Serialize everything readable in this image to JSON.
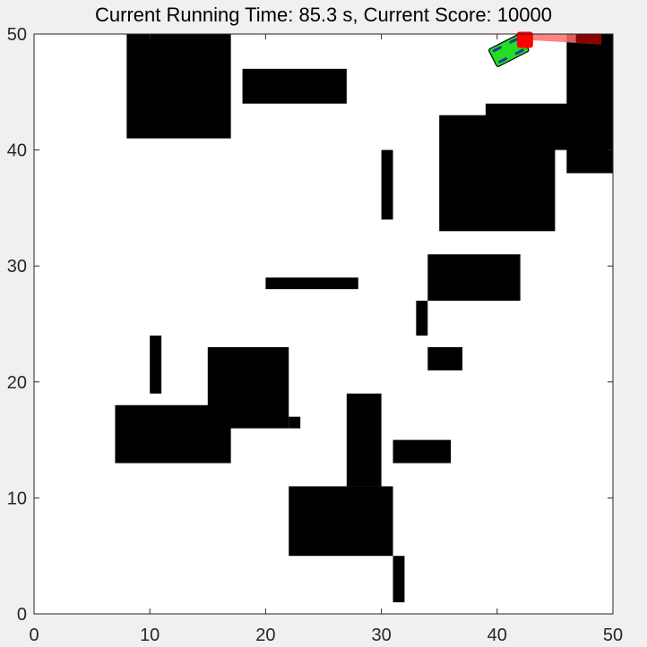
{
  "title": "Current Running Time: 85.3 s, Current Score: 10000",
  "chart_data": {
    "type": "map",
    "xlim": [
      0,
      50
    ],
    "ylim": [
      0,
      50
    ],
    "xticks": [
      0,
      10,
      20,
      30,
      40,
      50
    ],
    "yticks": [
      0,
      10,
      20,
      30,
      40,
      50
    ],
    "xtick_labels": [
      "0",
      "10",
      "20",
      "30",
      "40",
      "50"
    ],
    "ytick_labels": [
      "0",
      "10",
      "20",
      "30",
      "40",
      "50"
    ],
    "obstacles": [
      {
        "x": 8,
        "y": 41,
        "w": 9,
        "h": 9
      },
      {
        "x": 18,
        "y": 44,
        "w": 9,
        "h": 3
      },
      {
        "x": 30,
        "y": 34,
        "w": 1,
        "h": 6
      },
      {
        "x": 35,
        "y": 33,
        "w": 10,
        "h": 10
      },
      {
        "x": 39,
        "y": 40,
        "w": 11,
        "h": 4
      },
      {
        "x": 46,
        "y": 38,
        "w": 4,
        "h": 12
      },
      {
        "x": 20,
        "y": 28,
        "w": 8,
        "h": 1
      },
      {
        "x": 34,
        "y": 27,
        "w": 8,
        "h": 4
      },
      {
        "x": 33,
        "y": 24,
        "w": 1,
        "h": 3
      },
      {
        "x": 34,
        "y": 21,
        "w": 3,
        "h": 2
      },
      {
        "x": 10,
        "y": 19,
        "w": 1,
        "h": 5
      },
      {
        "x": 15,
        "y": 16,
        "w": 7,
        "h": 7
      },
      {
        "x": 22,
        "y": 16,
        "w": 1,
        "h": 1
      },
      {
        "x": 7,
        "y": 13,
        "w": 10,
        "h": 5
      },
      {
        "x": 27,
        "y": 11,
        "w": 3,
        "h": 8
      },
      {
        "x": 31,
        "y": 13,
        "w": 5,
        "h": 2
      },
      {
        "x": 22,
        "y": 5,
        "w": 9,
        "h": 6
      },
      {
        "x": 31,
        "y": 1,
        "w": 1,
        "h": 4
      }
    ],
    "vehicle": {
      "x": 41,
      "y": 48.6,
      "heading_deg": 27,
      "color": "#22dd22"
    },
    "sensor_cone": {
      "apex": [
        42.4,
        49.5
      ],
      "points": [
        [
          49,
          49.1
        ],
        [
          49,
          50
        ],
        [
          42.4,
          50
        ]
      ],
      "color": "#ff6f6f",
      "hit_color": "#8b0000"
    },
    "target": {
      "x": 42.4,
      "y": 49.5,
      "color": "#ff0000"
    }
  }
}
